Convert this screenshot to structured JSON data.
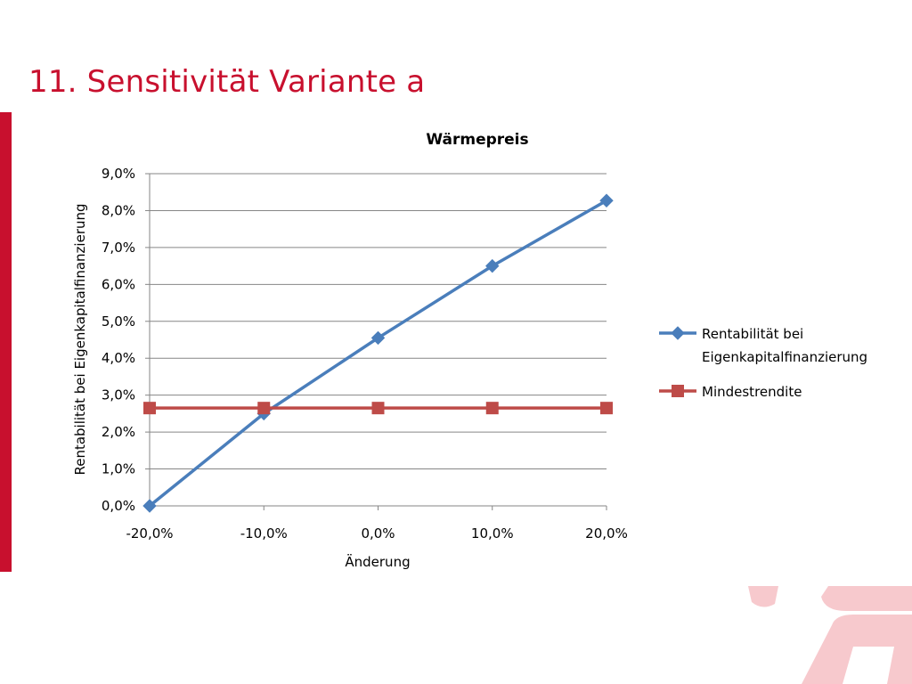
{
  "slide": {
    "title": "11. Sensitivität Variante a",
    "accent_color": "#c8102e"
  },
  "chart_data": {
    "type": "line",
    "title": "Wärmepreis",
    "xlabel": "Änderung",
    "ylabel": "Rentabilität bei Eigenkapitalfinanzierung",
    "categories": [
      "-20,0%",
      "-10,0%",
      "0,0%",
      "10,0%",
      "20,0%"
    ],
    "y_ticks": [
      "0,0%",
      "1,0%",
      "2,0%",
      "3,0%",
      "4,0%",
      "5,0%",
      "6,0%",
      "7,0%",
      "8,0%",
      "9,0%"
    ],
    "ylim": [
      0,
      9
    ],
    "grid": true,
    "legend_position": "right",
    "series": [
      {
        "name": "Rentabilität bei Eigenkapitalfinanzierung",
        "legend_lines": [
          "Rentabilität bei",
          "Eigenkapitalfinanzierung"
        ],
        "values": [
          0.0,
          2.5,
          4.55,
          6.5,
          8.27
        ],
        "color": "#4a7ebb",
        "marker": "diamond"
      },
      {
        "name": "Mindestrendite",
        "legend_lines": [
          "Mindestrendite"
        ],
        "values": [
          2.65,
          2.65,
          2.65,
          2.65,
          2.65
        ],
        "color": "#be4b48",
        "marker": "square"
      }
    ]
  }
}
